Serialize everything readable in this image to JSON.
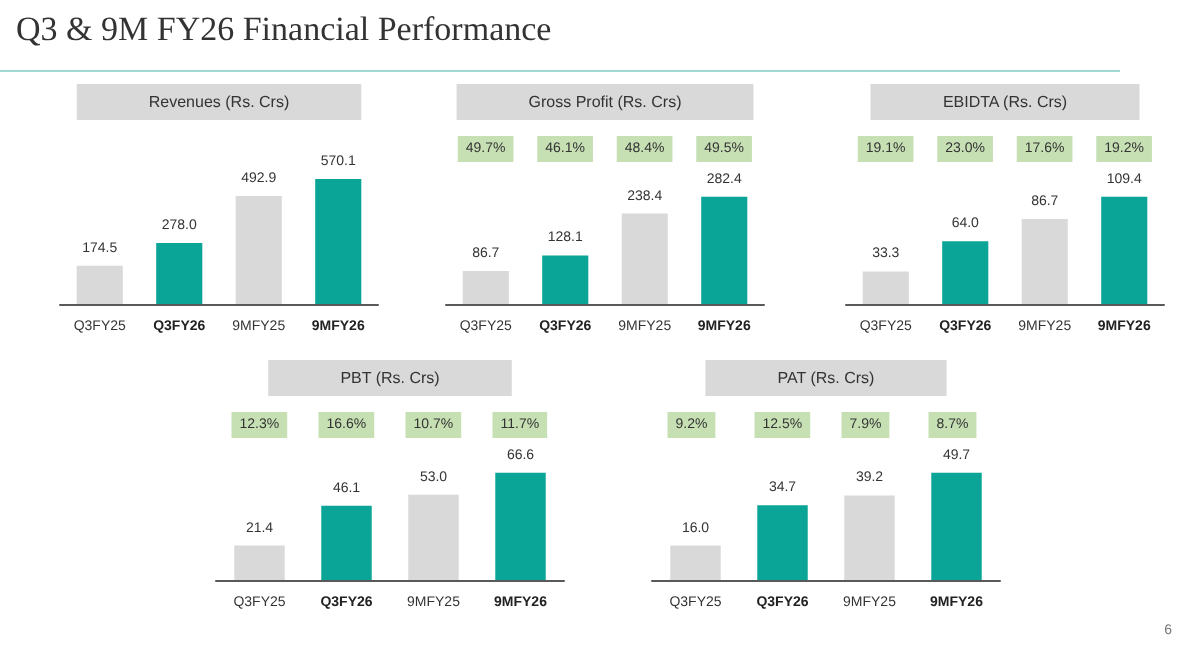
{
  "chart_data": [
    {
      "type": "other",
      "title": "Q3 & 9M FY26 Financial Performance",
      "annotations": [
        "6"
      ]
    },
    {
      "type": "bar",
      "title": "Revenues (Rs. Crs)",
      "categories": [
        "Q3FY25",
        "Q3FY26",
        "9MFY25",
        "9MFY26"
      ],
      "values": [
        174.5,
        278.0,
        492.9,
        570.1
      ],
      "value_labels": [
        "174.5",
        "278.0",
        "492.9",
        "570.1"
      ],
      "colors": [
        "#d9d9d9",
        "#0aa596",
        "#d9d9d9",
        "#0aa596"
      ],
      "tick_labels": "x"
    },
    {
      "type": "bar",
      "title": "Gross Profit (Rs. Crs)",
      "categories": [
        "Q3FY25",
        "Q3FY26",
        "9MFY25",
        "9MFY26"
      ],
      "values": [
        86.7,
        128.1,
        238.4,
        282.4
      ],
      "value_labels": [
        "86.7",
        "128.1",
        "238.4",
        "282.4"
      ],
      "colors": [
        "#d9d9d9",
        "#0aa596",
        "#d9d9d9",
        "#0aa596"
      ],
      "tick_labels": "x",
      "annotations": [
        "49.7%",
        "46.1%",
        "48.4%",
        "49.5%"
      ]
    },
    {
      "type": "bar",
      "title": "EBIDTA (Rs. Crs)",
      "categories": [
        "Q3FY25",
        "Q3FY26",
        "9MFY25",
        "9MFY26"
      ],
      "values": [
        33.3,
        64.0,
        86.7,
        109.4
      ],
      "value_labels": [
        "33.3",
        "64.0",
        "86.7",
        "109.4"
      ],
      "colors": [
        "#d9d9d9",
        "#0aa596",
        "#d9d9d9",
        "#0aa596"
      ],
      "tick_labels": "x",
      "annotations": [
        "19.1%",
        "23.0%",
        "17.6%",
        "19.2%"
      ]
    },
    {
      "type": "bar",
      "title": "PBT (Rs. Crs)",
      "categories": [
        "Q3FY25",
        "Q3FY26",
        "9MFY25",
        "9MFY26"
      ],
      "values": [
        21.4,
        46.1,
        53.0,
        66.6
      ],
      "value_labels": [
        "21.4",
        "46.1",
        "53.0",
        "66.6"
      ],
      "colors": [
        "#d9d9d9",
        "#0aa596",
        "#d9d9d9",
        "#0aa596"
      ],
      "tick_labels": "x",
      "annotations": [
        "12.3%",
        "16.6%",
        "10.7%",
        "11.7%"
      ]
    },
    {
      "type": "bar",
      "title": "PAT (Rs. Crs)",
      "categories": [
        "Q3FY25",
        "Q3FY26",
        "9MFY25",
        "9MFY26"
      ],
      "values": [
        16.0,
        34.7,
        39.2,
        49.7
      ],
      "value_labels": [
        "16.0",
        "34.7",
        "39.2",
        "49.7"
      ],
      "colors": [
        "#d9d9d9",
        "#0aa596",
        "#d9d9d9",
        "#0aa596"
      ],
      "tick_labels": "x",
      "annotations": [
        "9.2%",
        "12.5%",
        "7.9%",
        "8.7%"
      ]
    }
  ]
}
